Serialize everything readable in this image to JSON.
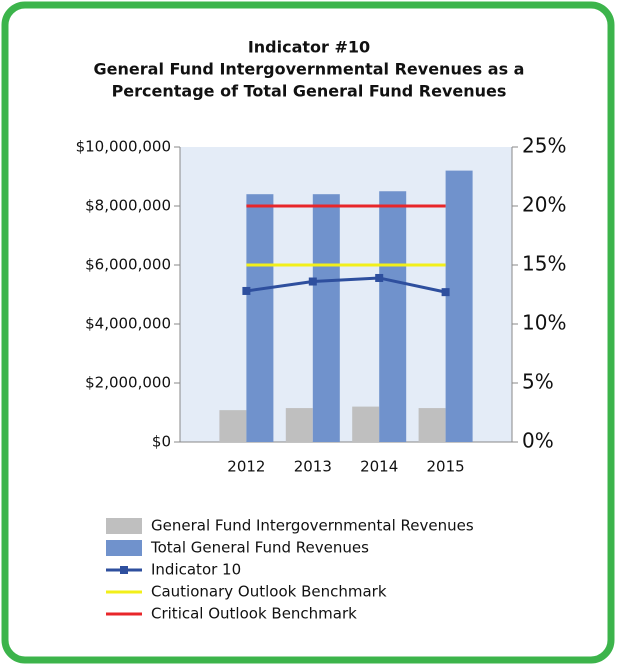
{
  "chart_data": {
    "type": "bar",
    "title": [
      "Indicator #10",
      "General Fund Intergovernmental Revenues as a",
      "Percentage of Total General Fund Revenues"
    ],
    "categories": [
      "2012",
      "2013",
      "2014",
      "2015"
    ],
    "series": [
      {
        "name": "General Fund Intergovernmental Revenues",
        "type": "bar",
        "color": "#bfbfbf",
        "values": [
          1080000,
          1150000,
          1200000,
          1150000
        ]
      },
      {
        "name": "Total General Fund Revenues",
        "type": "bar",
        "color": "#7092cc",
        "values": [
          8400000,
          8400000,
          8500000,
          9200000
        ]
      },
      {
        "name": "Indicator 10",
        "type": "line",
        "axis": "y2",
        "marker": "square",
        "color": "#2e4f9e",
        "values": [
          12.8,
          13.6,
          13.9,
          12.7
        ]
      },
      {
        "name": "Cautionary Outlook Benchmark",
        "type": "line",
        "axis": "y2",
        "color": "#f2ef1a",
        "values": [
          15,
          15,
          15,
          15
        ]
      },
      {
        "name": "Critical Outlook Benchmark",
        "type": "line",
        "axis": "y2",
        "color": "#e8262a",
        "values": [
          20,
          20,
          20,
          20
        ]
      }
    ],
    "ylim": [
      0,
      10000000
    ],
    "yticks": [
      {
        "value": 0,
        "label": "$0"
      },
      {
        "value": 2000000,
        "label": "$2,000,000"
      },
      {
        "value": 4000000,
        "label": "$4,000,000"
      },
      {
        "value": 6000000,
        "label": "$6,000,000"
      },
      {
        "value": 8000000,
        "label": "$8,000,000"
      },
      {
        "value": 10000000,
        "label": "$10,000,000"
      }
    ],
    "y2lim": [
      0,
      25
    ],
    "y2ticks": [
      {
        "value": 0,
        "label": "0%"
      },
      {
        "value": 5,
        "label": "5%"
      },
      {
        "value": 10,
        "label": "10%"
      },
      {
        "value": 15,
        "label": "15%"
      },
      {
        "value": 20,
        "label": "20%"
      },
      {
        "value": 25,
        "label": "25%"
      }
    ],
    "legend": "bottom"
  }
}
